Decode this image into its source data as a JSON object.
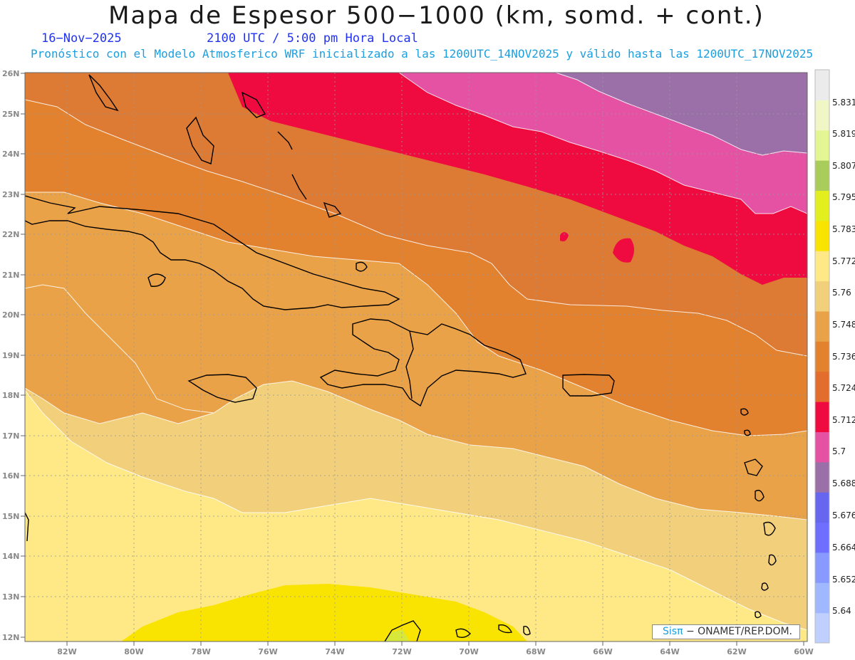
{
  "header": {
    "title": "Mapa de Espesor 500−1000 (km, somd. + cont.)",
    "date": "16−Nov−2025",
    "time_info": "2100 UTC / 5:00 pm Hora Local",
    "forecast_info": "Pronóstico con el Modelo Atmosferico WRF inicializado a las 1200UTC_14NOV2025 y válido hasta las  1200UTC_17NOV2025"
  },
  "map": {
    "lat_labels": [
      "26N",
      "25N",
      "24N",
      "23N",
      "22N",
      "21N",
      "20N",
      "19N",
      "18N",
      "17N",
      "16N",
      "15N",
      "14N",
      "13N",
      "12N"
    ],
    "lon_labels": [
      "82W",
      "80W",
      "78W",
      "76W",
      "74W",
      "72W",
      "70W",
      "68W",
      "66W",
      "64W",
      "62W",
      "60W"
    ]
  },
  "legend": {
    "levels": [
      "5.64",
      "5.652",
      "5.664",
      "5.676",
      "5.688",
      "5.7",
      "5.712",
      "5.724",
      "5.736",
      "5.748",
      "5.76",
      "5.772",
      "5.783",
      "5.795",
      "5.807",
      "5.819",
      "5.831"
    ],
    "colors": [
      "#bfcfff",
      "#a0b8ff",
      "#8899ff",
      "#6e6eff",
      "#6666ee",
      "#9b6fa8",
      "#e551a3",
      "#ef0b3f",
      "#e26d2c",
      "#e2822f",
      "#eaa248",
      "#f2cf7a",
      "#ffe987",
      "#f9e300",
      "#e2ee1e",
      "#a9cc5a",
      "#e4f693",
      "#f0f6c6",
      "#ebebeb"
    ]
  },
  "credit": {
    "sis": "Sisπ",
    "text": " − ONAMET/REP.DOM."
  }
}
